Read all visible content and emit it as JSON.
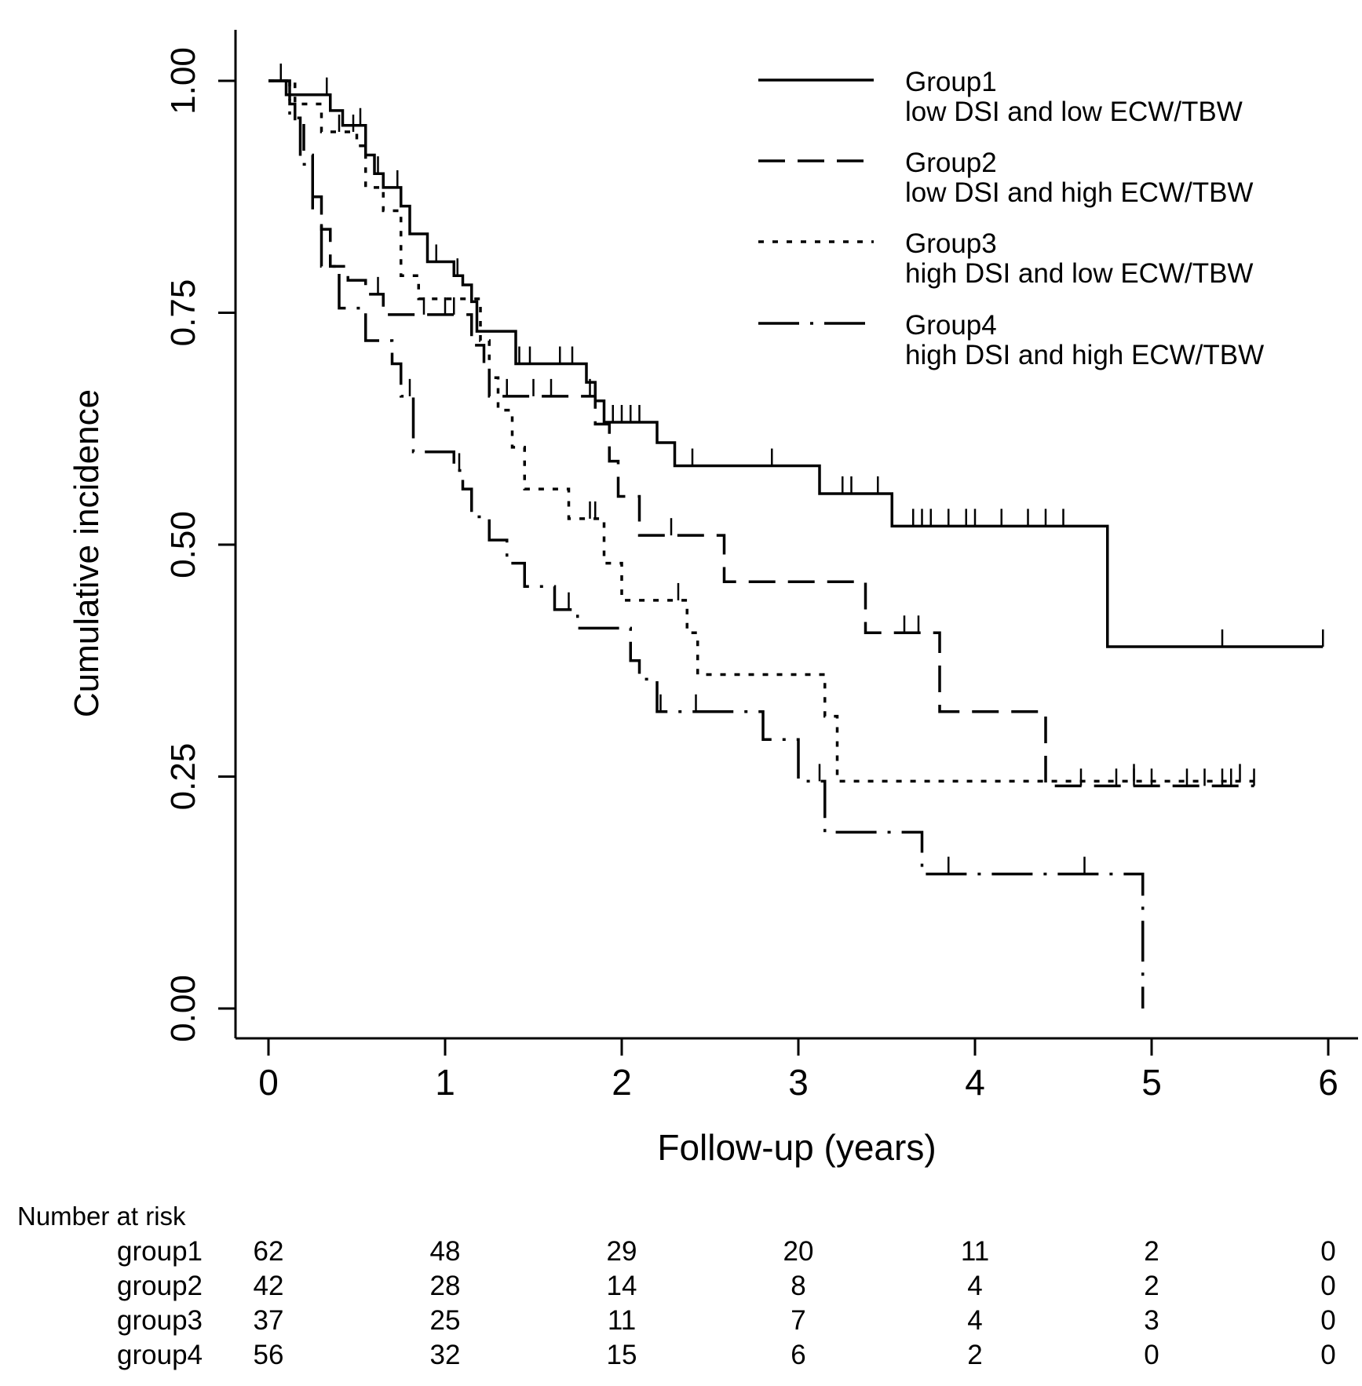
{
  "chart_data": {
    "type": "line",
    "title": "",
    "xlabel": "Follow-up (years)",
    "ylabel": "Cumulative incidence",
    "xlim": [
      0,
      6
    ],
    "ylim": [
      0,
      1
    ],
    "x_ticks": [
      "0",
      "1",
      "2",
      "3",
      "4",
      "5",
      "6"
    ],
    "y_ticks": [
      "0.00",
      "0.25",
      "0.50",
      "0.75",
      "1.00"
    ],
    "grid": false,
    "legend_position": "top-right",
    "series": [
      {
        "name": "Group1",
        "description": "low DSI and low ECW/TBW",
        "dash": "solid",
        "steps": [
          [
            0,
            1.0
          ],
          [
            0.1,
            0.985
          ],
          [
            0.35,
            0.968
          ],
          [
            0.42,
            0.952
          ],
          [
            0.55,
            0.92
          ],
          [
            0.6,
            0.9
          ],
          [
            0.65,
            0.885
          ],
          [
            0.75,
            0.865
          ],
          [
            0.8,
            0.835
          ],
          [
            0.9,
            0.805
          ],
          [
            1.05,
            0.79
          ],
          [
            1.1,
            0.78
          ],
          [
            1.15,
            0.762
          ],
          [
            1.18,
            0.73
          ],
          [
            1.4,
            0.695
          ],
          [
            1.8,
            0.675
          ],
          [
            1.85,
            0.655
          ],
          [
            1.9,
            0.632
          ],
          [
            2.2,
            0.61
          ],
          [
            2.3,
            0.585
          ],
          [
            3.12,
            0.555
          ],
          [
            3.53,
            0.52
          ],
          [
            4.75,
            0.39
          ],
          [
            5.97,
            0.39
          ]
        ],
        "censor_x": [
          0.07,
          0.33,
          0.52,
          0.62,
          0.73,
          0.95,
          1.07,
          1.42,
          1.48,
          1.65,
          1.72,
          1.95,
          2.0,
          2.05,
          2.1,
          2.2,
          2.4,
          2.85,
          3.25,
          3.3,
          3.45,
          3.65,
          3.7,
          3.75,
          3.85,
          3.95,
          4.0,
          4.15,
          4.3,
          4.4,
          4.5,
          4.75,
          5.4,
          5.97
        ]
      },
      {
        "name": "Group2",
        "description": "low DSI and high ECW/TBW",
        "dash": "dashed",
        "steps": [
          [
            0,
            1.0
          ],
          [
            0.12,
            0.975
          ],
          [
            0.15,
            0.955
          ],
          [
            0.2,
            0.92
          ],
          [
            0.25,
            0.875
          ],
          [
            0.3,
            0.84
          ],
          [
            0.35,
            0.8
          ],
          [
            0.45,
            0.785
          ],
          [
            0.55,
            0.77
          ],
          [
            0.65,
            0.748
          ],
          [
            1.15,
            0.715
          ],
          [
            1.22,
            0.69
          ],
          [
            1.25,
            0.66
          ],
          [
            1.85,
            0.63
          ],
          [
            1.93,
            0.59
          ],
          [
            1.98,
            0.552
          ],
          [
            2.1,
            0.51
          ],
          [
            2.58,
            0.46
          ],
          [
            3.38,
            0.405
          ],
          [
            3.8,
            0.32
          ],
          [
            4.4,
            0.24
          ],
          [
            5.58,
            0.24
          ]
        ],
        "censor_x": [
          0.07,
          0.62,
          0.88,
          1.0,
          1.05,
          1.35,
          1.5,
          1.6,
          1.82,
          2.28,
          3.6,
          3.68,
          4.6,
          4.8,
          4.9,
          5.0,
          5.2,
          5.3,
          5.4,
          5.45,
          5.58
        ]
      },
      {
        "name": "Group3",
        "description": "high DSI and low ECW/TBW",
        "dash": "dotted",
        "steps": [
          [
            0,
            1.0
          ],
          [
            0.15,
            0.975
          ],
          [
            0.3,
            0.945
          ],
          [
            0.5,
            0.93
          ],
          [
            0.55,
            0.885
          ],
          [
            0.65,
            0.86
          ],
          [
            0.75,
            0.79
          ],
          [
            0.85,
            0.765
          ],
          [
            1.2,
            0.72
          ],
          [
            1.25,
            0.68
          ],
          [
            1.3,
            0.645
          ],
          [
            1.38,
            0.605
          ],
          [
            1.45,
            0.56
          ],
          [
            1.7,
            0.528
          ],
          [
            1.9,
            0.48
          ],
          [
            2.0,
            0.44
          ],
          [
            2.37,
            0.405
          ],
          [
            2.43,
            0.36
          ],
          [
            3.15,
            0.315
          ],
          [
            3.22,
            0.245
          ],
          [
            5.58,
            0.245
          ]
        ],
        "censor_x": [
          0.4,
          0.48,
          1.82,
          1.85,
          2.32,
          4.9,
          5.5
        ]
      },
      {
        "name": "Group4",
        "description": "high DSI and high ECW/TBW",
        "dash": "dashdot",
        "steps": [
          [
            0,
            1.0
          ],
          [
            0.12,
            0.96
          ],
          [
            0.18,
            0.91
          ],
          [
            0.25,
            0.86
          ],
          [
            0.3,
            0.8
          ],
          [
            0.4,
            0.755
          ],
          [
            0.55,
            0.72
          ],
          [
            0.7,
            0.695
          ],
          [
            0.75,
            0.66
          ],
          [
            0.82,
            0.6
          ],
          [
            1.05,
            0.58
          ],
          [
            1.1,
            0.56
          ],
          [
            1.15,
            0.53
          ],
          [
            1.25,
            0.505
          ],
          [
            1.35,
            0.48
          ],
          [
            1.45,
            0.455
          ],
          [
            1.62,
            0.43
          ],
          [
            1.75,
            0.41
          ],
          [
            2.05,
            0.375
          ],
          [
            2.1,
            0.355
          ],
          [
            2.2,
            0.32
          ],
          [
            2.8,
            0.29
          ],
          [
            3.0,
            0.245
          ],
          [
            3.15,
            0.19
          ],
          [
            3.7,
            0.145
          ],
          [
            4.95,
            0.0
          ]
        ],
        "censor_x": [
          0.8,
          1.08,
          1.7,
          2.22,
          2.42,
          3.12,
          3.85,
          4.62
        ]
      }
    ],
    "risk_table": {
      "title": "Number at risk",
      "rows": [
        {
          "label": "group1",
          "values": [
            "62",
            "48",
            "29",
            "20",
            "11",
            "2",
            "0"
          ]
        },
        {
          "label": "group2",
          "values": [
            "42",
            "28",
            "14",
            "8",
            "4",
            "2",
            "0"
          ]
        },
        {
          "label": "group3",
          "values": [
            "37",
            "25",
            "11",
            "7",
            "4",
            "3",
            "0"
          ]
        },
        {
          "label": "group4",
          "values": [
            "56",
            "32",
            "15",
            "6",
            "2",
            "0",
            "0"
          ]
        }
      ]
    }
  }
}
